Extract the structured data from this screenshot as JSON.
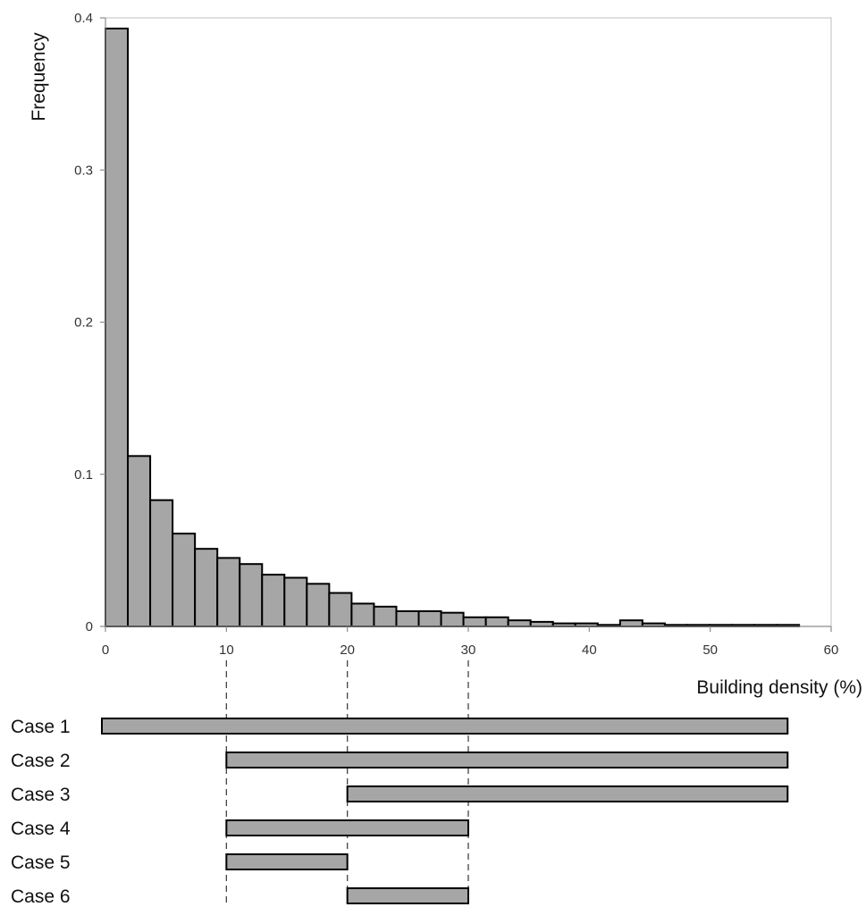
{
  "chart_data": {
    "type": "bar",
    "title": "",
    "xlabel": "Building density (%)",
    "ylabel": "Frequency",
    "xlim": [
      0,
      60
    ],
    "ylim": [
      0,
      0.4
    ],
    "x_ticks": [
      "0",
      "10",
      "20",
      "30",
      "40",
      "50",
      "60"
    ],
    "y_ticks": [
      "0",
      "0.1",
      "0.2",
      "0.3",
      "0.4"
    ],
    "bin_width": 1.85,
    "bin_start": 0,
    "values": [
      0.393,
      0.112,
      0.083,
      0.061,
      0.051,
      0.045,
      0.041,
      0.034,
      0.032,
      0.028,
      0.022,
      0.015,
      0.013,
      0.01,
      0.01,
      0.009,
      0.006,
      0.006,
      0.004,
      0.003,
      0.002,
      0.002,
      0.001,
      0.004,
      0.002,
      0.001,
      0.001,
      0.001,
      0.001,
      0.001,
      0.001
    ],
    "grid": false,
    "guide_lines_x": [
      10,
      20,
      30
    ],
    "cases": [
      {
        "label": "Case 1",
        "start": 0,
        "end": 56.4
      },
      {
        "label": "Case 2",
        "start": 10,
        "end": 56.4
      },
      {
        "label": "Case 3",
        "start": 20,
        "end": 56.4
      },
      {
        "label": "Case 4",
        "start": 10,
        "end": 30
      },
      {
        "label": "Case 5",
        "start": 10,
        "end": 20
      },
      {
        "label": "Case 6",
        "start": 20,
        "end": 30
      }
    ],
    "colors": {
      "bar_fill": "#a6a6a6",
      "bar_stroke": "#000000"
    }
  }
}
